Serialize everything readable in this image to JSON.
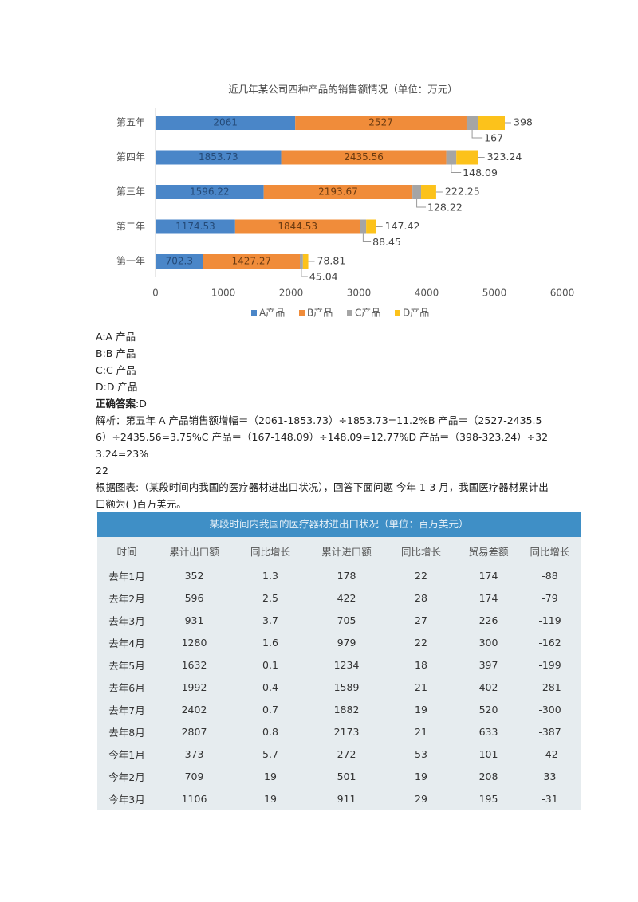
{
  "chart_data": {
    "type": "bar",
    "horizontal": true,
    "stacked": true,
    "title": "近几年某公司四种产品的销售额情况（单位：万元）",
    "categories": [
      "第五年",
      "第四年",
      "第三年",
      "第二年",
      "第一年"
    ],
    "series": [
      {
        "name": "A产品",
        "color": "#4a86c8",
        "values": [
          2061,
          1853.73,
          1596.22,
          1174.53,
          702.3
        ]
      },
      {
        "name": "B产品",
        "color": "#f08c3a",
        "values": [
          2527,
          2435.56,
          2193.67,
          1844.53,
          1427.27
        ]
      },
      {
        "name": "C产品",
        "color": "#a5a5a5",
        "values": [
          167,
          148.09,
          128.22,
          88.45,
          45.04
        ]
      },
      {
        "name": "D产品",
        "color": "#fcc21b",
        "values": [
          398,
          323.24,
          222.25,
          147.42,
          78.81
        ]
      }
    ],
    "xlim": [
      0,
      6000
    ],
    "xticks": [
      0,
      1000,
      2000,
      3000,
      4000,
      5000,
      6000
    ],
    "legend": "bottom"
  },
  "options": [
    "A:A 产品",
    "B:B 产品",
    "C:C 产品",
    "D:D 产品"
  ],
  "answer": {
    "label": "正确答案",
    "value": ":D"
  },
  "explanation": "解析：第五年 A 产品销售额增幅＝（2061-1853.73）÷1853.73=11.2%B 产品＝（2527-2435.56）÷2435.56=3.75%C 产品＝（167-148.09）÷148.09=12.77%D 产品＝（398-323.24）÷323.24=23%",
  "question_number": "22",
  "question": "根据图表:（某段时间内我国的医疗器材进出口状况），回答下面问题 今年 1-3 月，我国医疗器材累计出口额为( )百万美元。",
  "table": {
    "title": "某段时间内我国的医疗器材进出口状况（单位：百万美元）",
    "header": [
      "时间",
      "累计出口额",
      "同比增长",
      "累计进口额",
      "同比增长",
      "贸易差额",
      "同比增长"
    ],
    "rows": [
      [
        "去年1月",
        "352",
        "1.3",
        "178",
        "22",
        "174",
        "-88"
      ],
      [
        "去年2月",
        "596",
        "2.5",
        "422",
        "28",
        "174",
        "-79"
      ],
      [
        "去年3月",
        "931",
        "3.7",
        "705",
        "27",
        "226",
        "-119"
      ],
      [
        "去年4月",
        "1280",
        "1.6",
        "979",
        "22",
        "300",
        "-162"
      ],
      [
        "去年5月",
        "1632",
        "0.1",
        "1234",
        "18",
        "397",
        "-199"
      ],
      [
        "去年6月",
        "1992",
        "0.4",
        "1589",
        "21",
        "402",
        "-281"
      ],
      [
        "去年7月",
        "2402",
        "0.7",
        "1882",
        "19",
        "520",
        "-300"
      ],
      [
        "去年8月",
        "2807",
        "0.8",
        "2173",
        "21",
        "633",
        "-387"
      ],
      [
        "今年1月",
        "373",
        "5.7",
        "272",
        "53",
        "101",
        "-42"
      ],
      [
        "今年2月",
        "709",
        "19",
        "501",
        "19",
        "208",
        "33"
      ],
      [
        "今年3月",
        "1106",
        "19",
        "911",
        "29",
        "195",
        "-31"
      ]
    ]
  }
}
